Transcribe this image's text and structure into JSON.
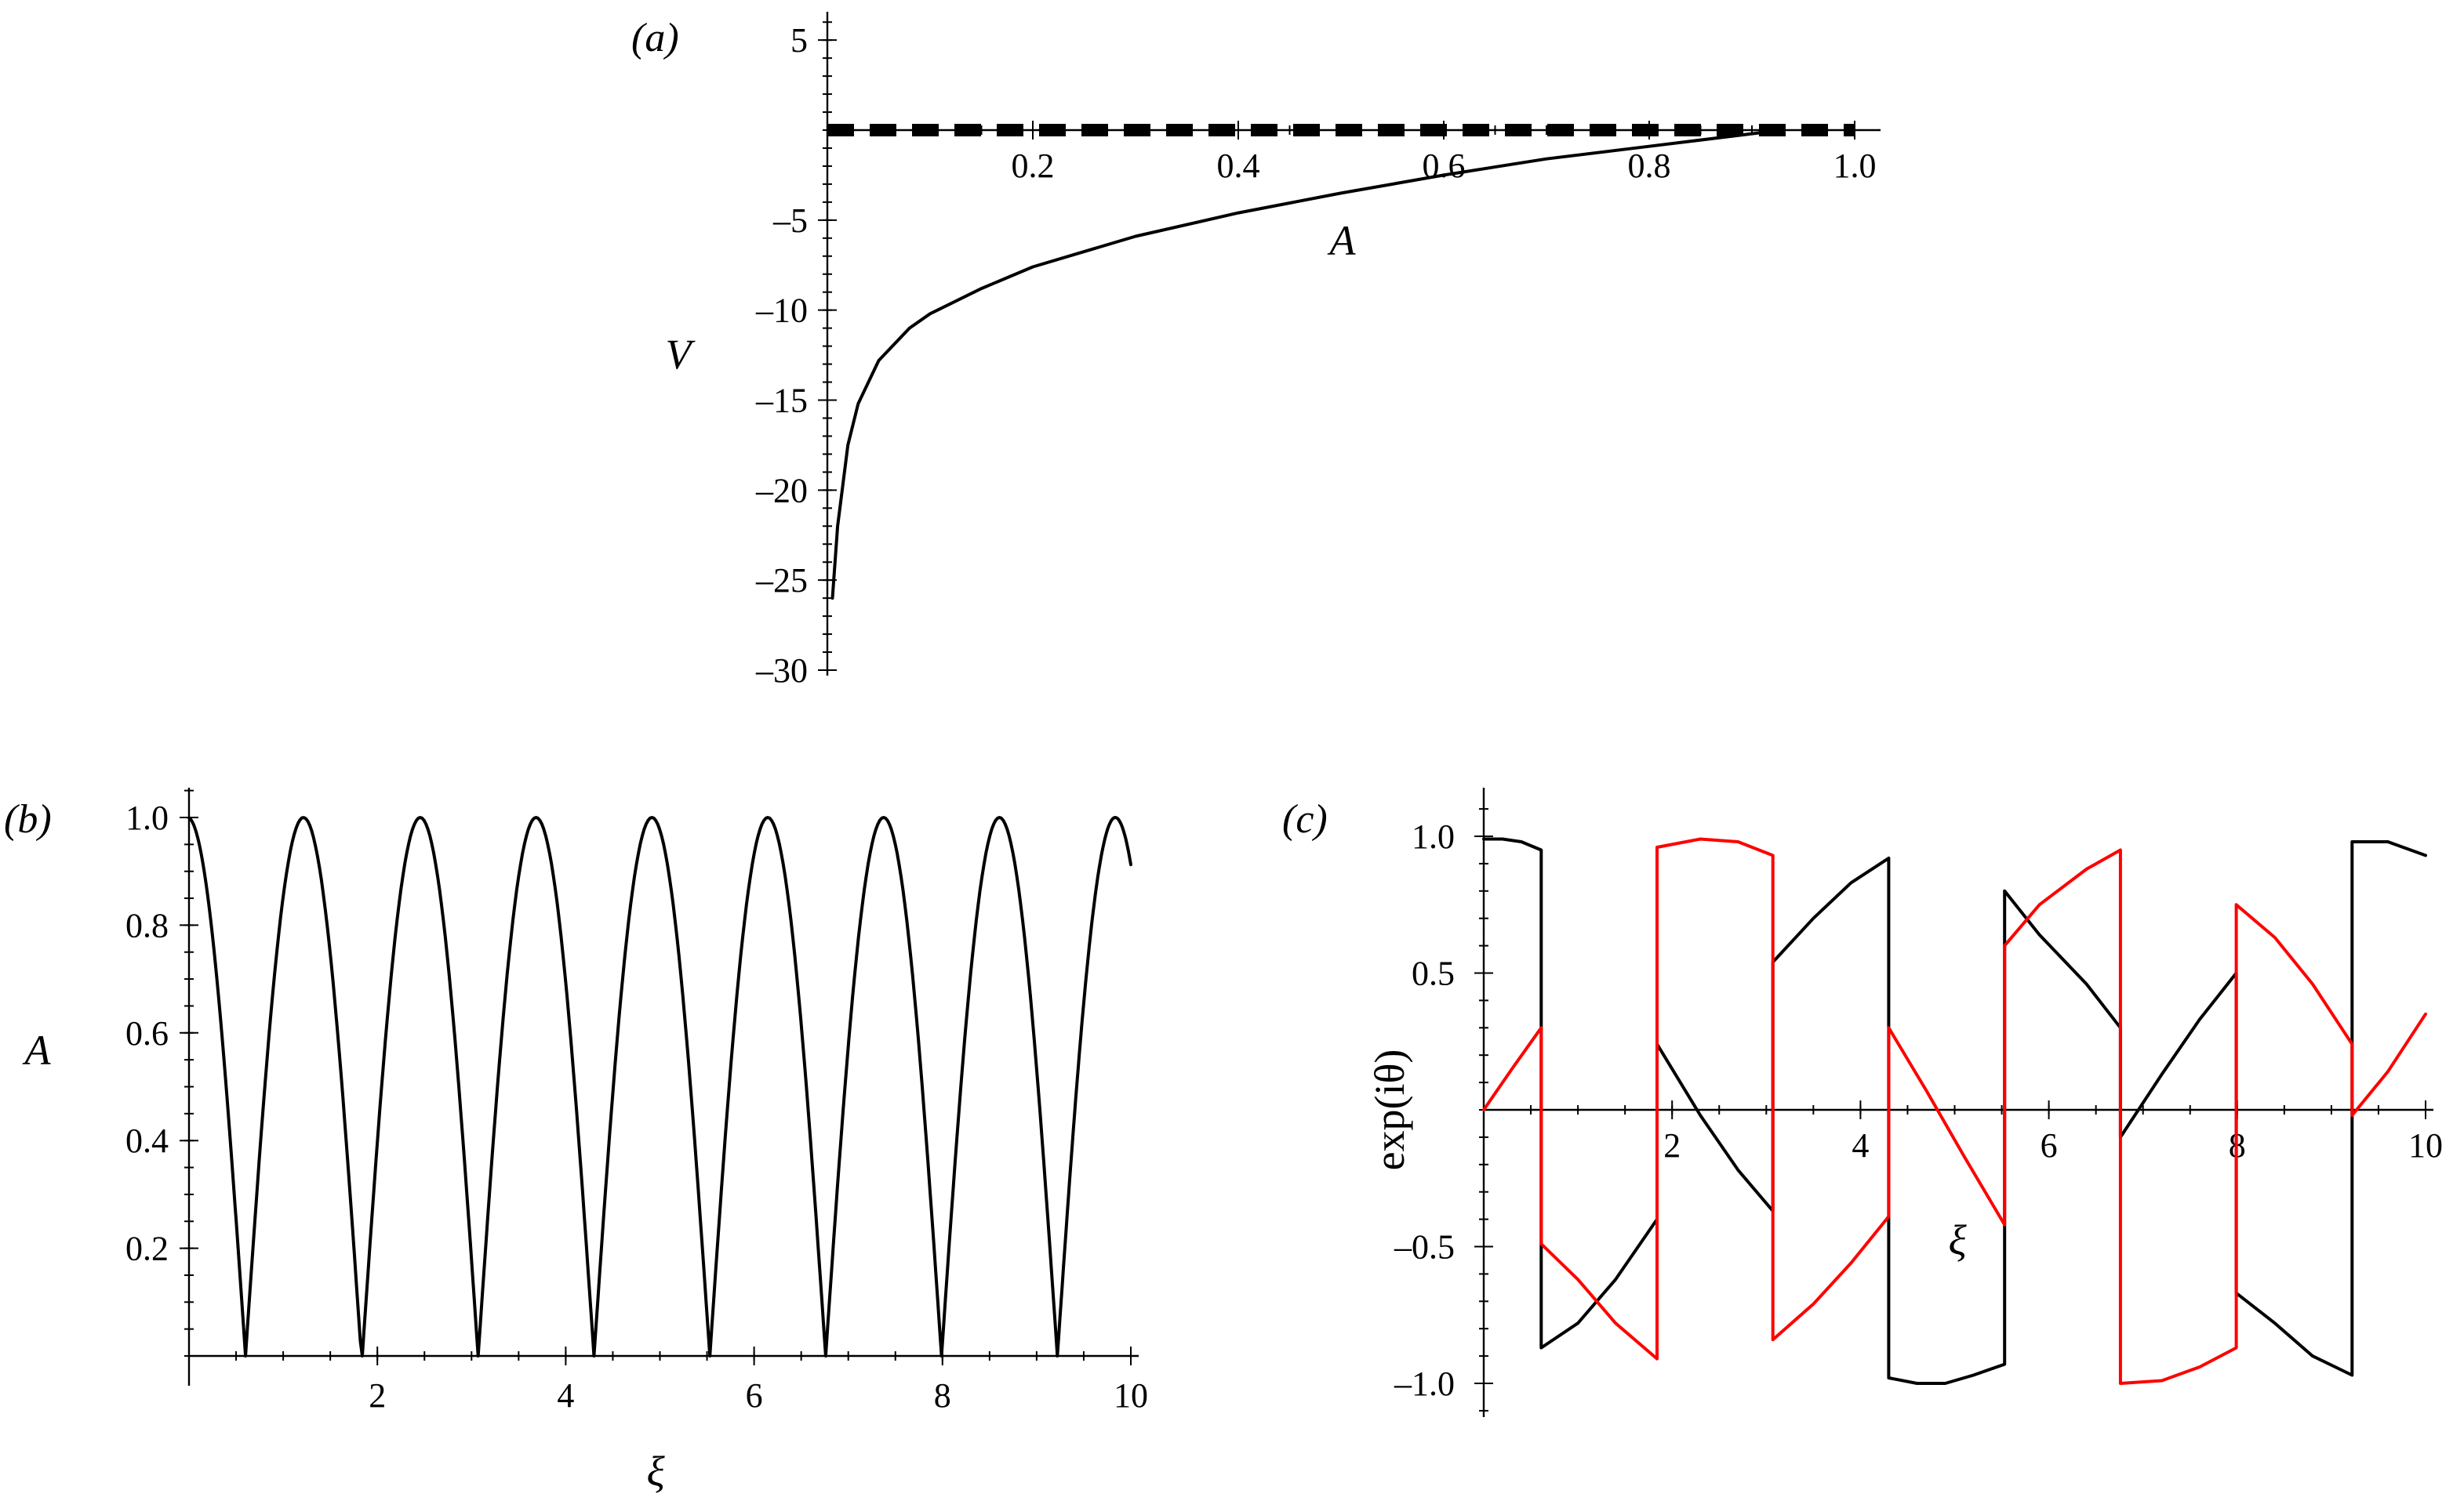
{
  "chart_data": [
    {
      "panel": "(a)",
      "type": "line",
      "xlabel": "A",
      "ylabel": "V",
      "xlim": [
        0,
        1.0
      ],
      "ylim": [
        -30,
        6
      ],
      "x_ticks": [
        "0.2",
        "0.4",
        "0.6",
        "0.8",
        "1.0"
      ],
      "y_ticks": [
        "5",
        "–5",
        "–10",
        "–15",
        "–20",
        "–25",
        "–30"
      ],
      "grid": false,
      "series": [
        {
          "style": "solid",
          "color": "#000000",
          "x": [
            0.005,
            0.01,
            0.02,
            0.03,
            0.05,
            0.08,
            0.1,
            0.15,
            0.2,
            0.3,
            0.4,
            0.5,
            0.6,
            0.7,
            0.8,
            0.9,
            0.93
          ],
          "y": [
            -26.0,
            -22.0,
            -17.5,
            -15.2,
            -12.8,
            -11.0,
            -10.2,
            -8.8,
            -7.6,
            -5.9,
            -4.6,
            -3.5,
            -2.5,
            -1.6,
            -0.9,
            -0.2,
            0.0
          ]
        },
        {
          "style": "dashed",
          "color": "#000000",
          "x": [
            0.0,
            1.0
          ],
          "y": [
            0.0,
            0.0
          ]
        }
      ]
    },
    {
      "panel": "(b)",
      "type": "line",
      "xlabel": "ξ",
      "ylabel": "A",
      "xlim": [
        0,
        10
      ],
      "ylim": [
        0,
        1.05
      ],
      "x_ticks": [
        "2",
        "4",
        "6",
        "8",
        "10"
      ],
      "y_ticks": [
        "0.2",
        "0.4",
        "0.6",
        "0.8",
        "1.0"
      ],
      "grid": false,
      "period": 1.23,
      "zeros": [
        0.6,
        1.84,
        3.07,
        4.3,
        5.53,
        6.76,
        7.99,
        9.22
      ],
      "series": [
        {
          "color": "#000000",
          "x": [
            0.0,
            0.6,
            1.23,
            1.84,
            2.46,
            3.07,
            3.69,
            4.3,
            4.92,
            5.53,
            6.15,
            6.76,
            7.38,
            7.99,
            8.61,
            9.22,
            9.84,
            10.0
          ],
          "y": [
            1.0,
            0.0,
            1.0,
            0.0,
            1.0,
            0.0,
            1.0,
            0.0,
            1.0,
            0.0,
            1.0,
            0.0,
            1.0,
            0.0,
            1.0,
            0.0,
            1.0,
            0.92
          ]
        }
      ]
    },
    {
      "panel": "(c)",
      "type": "line",
      "xlabel": "ξ",
      "ylabel": "exp(iθ)",
      "xlim": [
        0,
        10
      ],
      "ylim": [
        -1.1,
        1.1
      ],
      "x_ticks": [
        "2",
        "4",
        "6",
        "8",
        "10"
      ],
      "y_ticks": [
        "1.0",
        "0.5",
        "–0.5",
        "–1.0"
      ],
      "grid": false,
      "series": [
        {
          "color": "#000000",
          "x": [
            0.0,
            0.2,
            0.4,
            0.61,
            0.61,
            1.0,
            1.4,
            1.84,
            1.84,
            2.3,
            2.7,
            3.07,
            3.07,
            3.5,
            3.9,
            4.3,
            4.3,
            4.6,
            4.9,
            5.2,
            5.53,
            5.53,
            5.9,
            6.4,
            6.76,
            6.76,
            7.2,
            7.6,
            7.99,
            7.99,
            8.4,
            8.8,
            9.22,
            9.22,
            9.6,
            10.0
          ],
          "y": [
            0.99,
            0.99,
            0.98,
            0.95,
            -0.87,
            -0.78,
            -0.62,
            -0.4,
            0.24,
            -0.02,
            -0.22,
            -0.37,
            0.54,
            0.7,
            0.83,
            0.92,
            -0.98,
            -1.0,
            -1.0,
            -0.97,
            -0.93,
            0.8,
            0.64,
            0.46,
            0.3,
            -0.1,
            0.13,
            0.33,
            0.5,
            -0.67,
            -0.78,
            -0.9,
            -0.97,
            0.98,
            0.98,
            0.93
          ]
        },
        {
          "color": "#ff0000",
          "x": [
            0.0,
            0.3,
            0.61,
            0.61,
            1.0,
            1.4,
            1.84,
            1.84,
            2.3,
            2.7,
            3.07,
            3.07,
            3.5,
            3.9,
            4.3,
            4.3,
            4.7,
            5.1,
            5.53,
            5.53,
            5.9,
            6.4,
            6.76,
            6.76,
            7.2,
            7.6,
            7.99,
            7.99,
            8.4,
            8.8,
            9.22,
            9.22,
            9.6,
            10.0
          ],
          "y": [
            0.0,
            0.15,
            0.3,
            -0.49,
            -0.62,
            -0.78,
            -0.91,
            0.96,
            0.99,
            0.98,
            0.93,
            -0.84,
            -0.71,
            -0.56,
            -0.39,
            0.3,
            0.07,
            -0.17,
            -0.42,
            0.6,
            0.75,
            0.88,
            0.95,
            -1.0,
            -0.99,
            -0.94,
            -0.87,
            0.75,
            0.63,
            0.46,
            0.24,
            -0.02,
            0.14,
            0.35
          ]
        }
      ]
    }
  ]
}
